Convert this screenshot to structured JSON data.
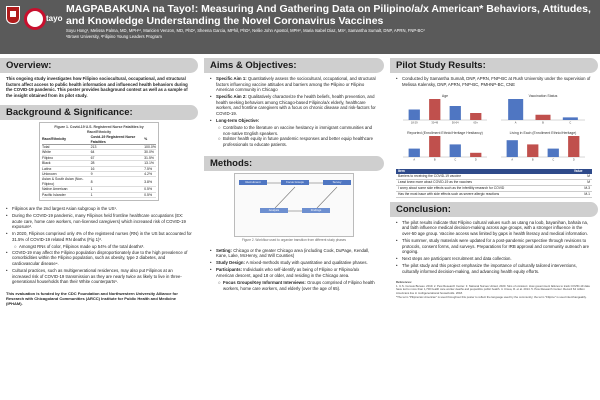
{
  "header": {
    "title": "MAGPABAKUNA na Tayo!: Measuring And Gathering Data on Pilipino/a/x American* Behaviors, Attitudes, and Knowledge Understanding the Novel Coronavirus Vaccines",
    "authors": "Soyu Hong¹, Melissa Palma, MD, MPH¹², Maricien Venzon, MD, PhD², Sheena Garcia, MPhil, PhD², Nellie John Apostol, MPH², Maria Isabel Diaz, MS², Samantha Sumalt, DNP, APRN, FNP-BC²",
    "affiliations": "¹Brown University, ²Filipino Young Leaders Program",
    "logo_text": "tayo"
  },
  "overview": {
    "title": "Overview:",
    "text": "This ongoing study investigates how Filipino sociocultural, occupational, and structural factors affect access to public health information and influenced health behaviors during the COVID-19 pandemic. This poster provides background context as well as a sample of the insight obtained from its pilot study."
  },
  "background": {
    "title": "Background & Significance:",
    "table_caption": "Figure 1. Covid-19 U.S. Registered Nurse Fatalities by Race/Ethnicity",
    "table_headers": [
      "Race/Ethnicity",
      "Covid-19 Registered Nurse Fatalities",
      "%"
    ],
    "table_rows": [
      [
        "Total",
        "213",
        "100.0%"
      ],
      [
        "White",
        "64",
        "30.0%"
      ],
      [
        "Filipino",
        "67",
        "31.5%"
      ],
      [
        "Black",
        "28",
        "13.1%"
      ],
      [
        "Latinx",
        "16",
        "7.5%"
      ],
      [
        "Unknown",
        "9",
        "4.2%"
      ],
      [
        "Asian & South Asian (Non-Filipino)",
        "8",
        "3.8%"
      ],
      [
        "Native American",
        "1",
        "0.5%"
      ],
      [
        "Pacific Islander",
        "1",
        "0.5%"
      ]
    ],
    "bullets": [
      "Filipinos are the 2nd largest Asian subgroup in the US¹.",
      "During the COVID-19 pandemic, many Filipinos held frontline healthcare occupations (EX: acute care, home care workers, non-licensed caregivers) which increased risk of COVID-19 exposure².",
      "In 2020, Filipinos comprised only 4% of the registered nurses (RN) in the US but accounted for 31.5% of COVID-19 related RN deaths (Fig 1)³.",
      "Amongst RNs of color, Filipinos made up 54% of the total deaths³.",
      "COVID-19 may affect the Filipino population disproportionately due to the high prevalence of comorbidities within the Filipino population, such as obesity, type 2 diabetes, and cardiovascular disease⁴.",
      "Cultural practices, such as multigenerational residences, may also put Filipinos at an increased risk of COVID-19 transmission as they are nearly twice as likely to live in three-generational households than their White counterparts⁵."
    ]
  },
  "funding": {
    "text": "This evaluation is funded by the CDC Foundation and Northwestern University Alliance for Research with Chicagoland Communities (ARCC) Institute for Public Health and Medicine (IPHAM)."
  },
  "aims": {
    "title": "Aims & Objectives:",
    "aim1_label": "Specific Aim 1:",
    "aim1_text": "Quantitatively assess the sociocultural, occupational, and structural factors influencing vaccine attitudes and barriers among the Pilipino or Filipino American community in Chicago",
    "aim2_label": "Specific Aim 2:",
    "aim2_text": "Qualitatively characterize the health beliefs, health prevention, and health seeking behaviors among Chicago-based Filipino/a/x elderly, healthcare workers, and frontline caregivers with a focus on chronic disease and risk-factors for COVID-19.",
    "longterm_label": "Long-term Objective:",
    "longterm_items": [
      "Contribute to the literature on vaccine hesitancy in immigrant communities and non-native English speakers.",
      "Bolster health equity in future pandemic responses and better equip healthcare professionals to educate patients."
    ]
  },
  "methods": {
    "title": "Methods:",
    "diagram_caption": "Figure 2. Workflow used to organize transition from different study phases",
    "diagram_nodes": [
      "Recruitment",
      "Focus Groups",
      "Survey",
      "Analysis",
      "Findings"
    ],
    "setting_label": "Setting:",
    "setting_text": "Chicago or the greater Chicago area (including Cook, DuPage, Kendall, Kane, Lake, McHenry, and Will Counties)",
    "design_label": "Study Design:",
    "design_text": "A mixed-methods study with quantitative and qualitative phases.",
    "participants_label": "Participants:",
    "participants_text": "Individuals who self-identify as being of Filipino or Filipino/a/x American descent, aged 18 or older, and residing in the Chicago area.",
    "focus_label": "Focus Groups/Key Informant Interviews:",
    "focus_text": "Groups comprised of Filipino health workers, home care workers, and elderly (over the age of 65)."
  },
  "pilot": {
    "title": "Pilot Study Results:",
    "bullet": "Conducted by Samantha Sumalt, DNP, APRN, FNP-BC at Rush University under the supervision of Melissa Kalensky, DNP, APRN, FNP-BC, PMHNP-BC, CNE",
    "chart1_title": "Age",
    "chart2_title": "Vaccination Status",
    "chart3_title": "Reported (Enrollment Ethnic/Heritage Hesitancy)",
    "chart4_title": "Living in Each (Enrollment Ethnic/Heritage)",
    "results_header": [
      "Item",
      "Value"
    ],
    "results_rows": [
      [
        "Barriers to receiving the COVID-19 vaccine",
        "M"
      ],
      [
        "Least knew more about COVID-19 as the vaccines",
        "M"
      ],
      [
        "I worry about some side effects such as the infertility research for COVID",
        "M-3"
      ],
      [
        "Has the most issue with side effects such as severe allergic reactions",
        "M-1"
      ]
    ]
  },
  "chart_data": [
    {
      "type": "bar",
      "title": "Age",
      "categories": [
        "18-29",
        "30-49",
        "50-64",
        "65+"
      ],
      "values": [
        3,
        6,
        4,
        2
      ]
    },
    {
      "type": "bar",
      "title": "Vaccination Status",
      "categories": [
        "A",
        "B",
        "C"
      ],
      "values": [
        8,
        2,
        1
      ]
    },
    {
      "type": "bar",
      "title": "Reported (Enrollment Ethnic/Heritage Hesitancy)",
      "categories": [
        "A",
        "B",
        "C",
        "D"
      ],
      "values": [
        2,
        5,
        3,
        1
      ]
    },
    {
      "type": "bar",
      "title": "Living in Each (Enrollment Ethnic/Heritage)",
      "categories": [
        "A",
        "B",
        "C",
        "D"
      ],
      "values": [
        4,
        3,
        2,
        5
      ]
    }
  ],
  "conclusion": {
    "title": "Conclusion:",
    "bullets": [
      "The pilot results indicate that Filipino cultural values such as utang na loob, bayanihan, bahala na, and faith influence medical decision-making across age groups, with a stronger influence in the over-50 age group. Vaccine access was limited by gaps in health literacy and medical information.",
      "This summer, study materials were updated for a post-pandemic perspective through revisions to protocols, consent forms, and surveys. Preparations for IRB approval and community outreach are ongoing.",
      "Next steps are participant recruitment and data collection.",
      "The pilot study and this project emphasize the importance of culturally tailored interventions, culturally informed decision-making, and advancing health equity efforts."
    ],
    "refs_title": "References:",
    "refs_text": "1. U.S. Census Bureau. 2019. 2. Pew Research Center. 3. National Nurses United, 2020. Sins of omission: How government failures to track COVID-19 data have led to more than 1,700 health care worker deaths and jeopardize public health. 4. Ursua, R. et al. 2014. 5. Pew Research Center. Record 64 million Americans live in multigenerational households. 2018.",
    "footnote": "*The term \"Pilipino/a/x American\" is used throughout this poster to reflect the language used by the community; the term \"Filipino\" is used interchangeably."
  },
  "colors": {
    "header_bg": "#5a5a5a",
    "section_bar": "#cfcfcf",
    "chart_blue": "#4f76c2",
    "chart_red": "#c0504d",
    "table_header": "#2e4a8a"
  }
}
